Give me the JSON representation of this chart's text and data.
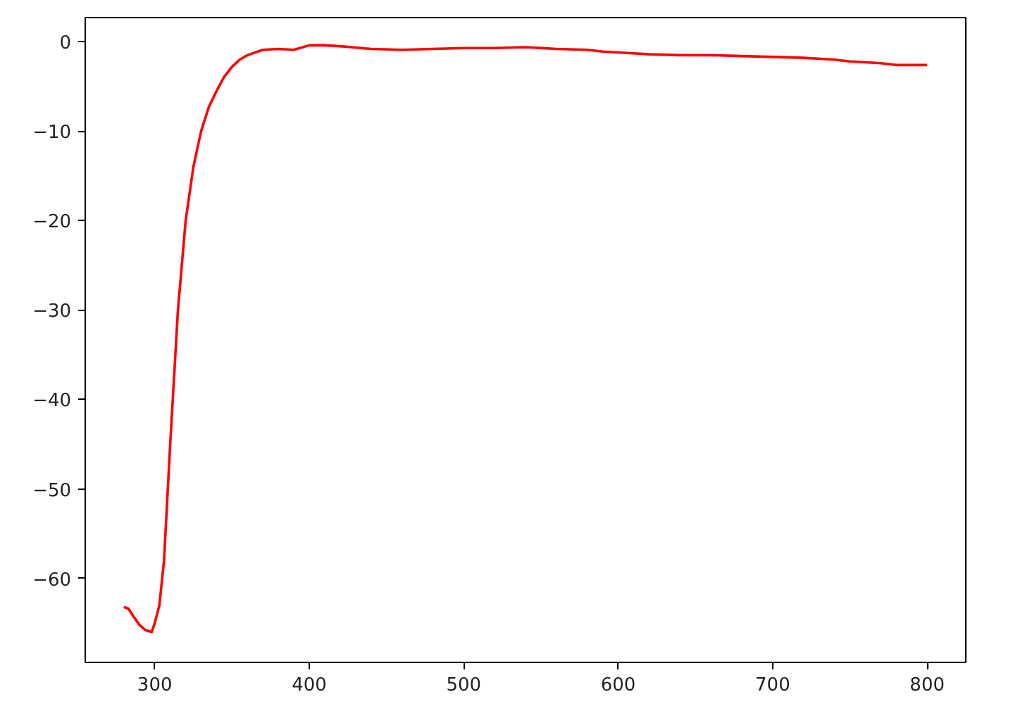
{
  "chart_data": {
    "type": "line",
    "x": [
      280,
      283,
      286,
      290,
      294,
      298,
      300,
      303,
      306,
      310,
      315,
      320,
      325,
      330,
      335,
      340,
      345,
      350,
      355,
      360,
      370,
      380,
      390,
      400,
      410,
      420,
      440,
      460,
      480,
      500,
      520,
      540,
      560,
      580,
      590,
      600,
      610,
      620,
      640,
      660,
      680,
      700,
      720,
      740,
      750,
      760,
      770,
      780,
      790,
      800
    ],
    "series": [
      {
        "color": "#ff0000",
        "values": [
          -63.2,
          -63.4,
          -64.2,
          -65.2,
          -65.8,
          -66.0,
          -65.0,
          -63.0,
          -58.0,
          -45.0,
          -30.0,
          -20.0,
          -14.0,
          -10.0,
          -7.3,
          -5.5,
          -3.9,
          -2.8,
          -2.0,
          -1.5,
          -0.9,
          -0.8,
          -0.9,
          -0.4,
          -0.4,
          -0.5,
          -0.8,
          -0.9,
          -0.8,
          -0.7,
          -0.7,
          -0.6,
          -0.8,
          -0.9,
          -1.1,
          -1.2,
          -1.3,
          -1.4,
          -1.5,
          -1.5,
          -1.6,
          -1.7,
          -1.8,
          -2.0,
          -2.2,
          -2.3,
          -2.4,
          -2.6,
          -2.6,
          -2.6
        ]
      }
    ],
    "xlim": [
      255,
      825
    ],
    "ylim": [
      -69.4,
      2.7
    ],
    "xticks": [
      300,
      400,
      500,
      600,
      700,
      800
    ],
    "yticks": [
      -60,
      -50,
      -40,
      -30,
      -20,
      -10,
      0
    ],
    "grid": false,
    "marker": "none",
    "line_style": "solid"
  }
}
